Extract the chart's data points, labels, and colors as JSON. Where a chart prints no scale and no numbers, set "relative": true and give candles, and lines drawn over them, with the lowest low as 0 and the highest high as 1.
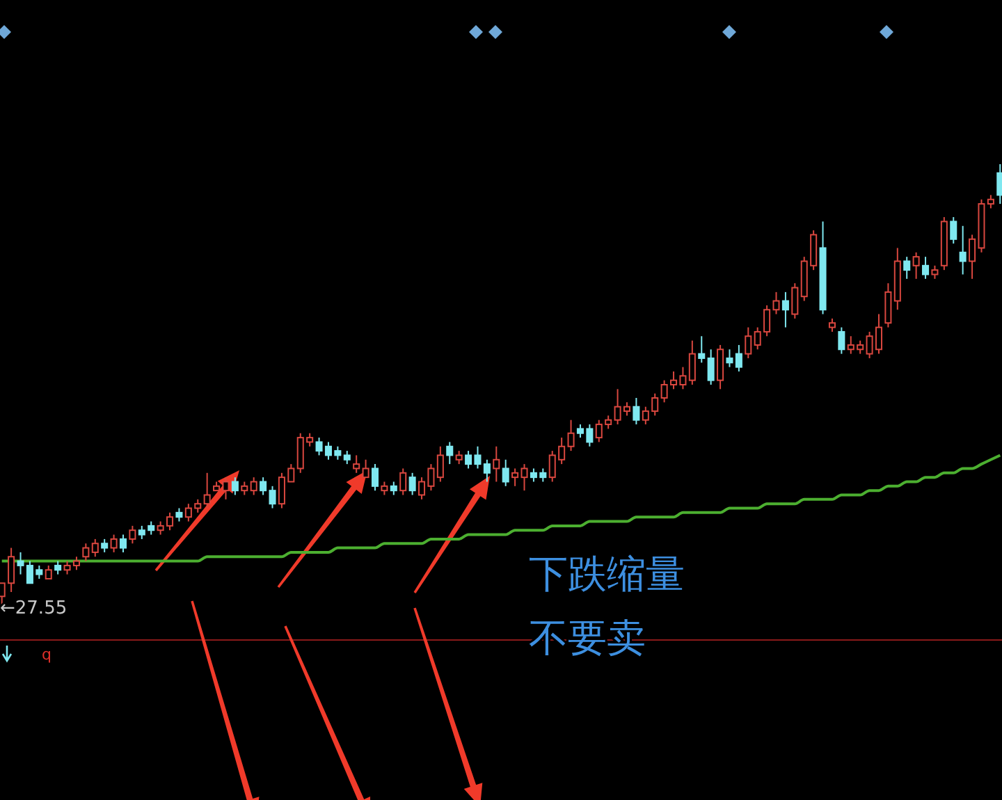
{
  "chart_data": {
    "type": "candlestick",
    "relative": true,
    "categories": [
      null,
      null,
      null,
      null,
      null,
      null,
      null,
      null,
      null,
      null,
      null,
      null,
      null,
      null,
      null,
      null,
      null,
      null,
      null,
      null,
      null,
      null,
      null,
      null,
      null,
      null,
      null,
      null,
      null,
      null,
      null,
      null,
      null,
      null,
      null,
      null,
      null,
      null,
      null,
      null,
      null,
      null,
      null,
      null,
      null,
      null,
      null,
      null,
      null,
      null,
      null,
      null,
      null,
      null,
      null,
      null,
      null,
      null,
      null,
      null,
      null,
      null,
      null,
      null,
      null,
      null,
      null,
      null,
      null,
      null,
      null,
      null,
      null,
      null,
      null,
      null,
      null,
      null,
      null,
      null,
      null,
      null,
      null,
      null,
      null,
      null,
      null,
      null,
      null,
      null,
      null,
      null,
      null,
      null,
      null,
      null,
      null,
      null,
      null,
      null,
      null,
      null,
      null,
      null,
      null,
      null,
      null,
      null
    ],
    "ohlc": [
      [
        0.02,
        0.05,
        0,
        0.05
      ],
      [
        0.05,
        0.13,
        0.03,
        0.11
      ],
      [
        0.1,
        0.12,
        0.07,
        0.09
      ],
      [
        0.09,
        0.1,
        0.05,
        0.05
      ],
      [
        0.08,
        0.09,
        0.06,
        0.07
      ],
      [
        0.06,
        0.09,
        0.06,
        0.08
      ],
      [
        0.09,
        0.1,
        0.07,
        0.08
      ],
      [
        0.08,
        0.1,
        0.07,
        0.09
      ],
      [
        0.09,
        0.11,
        0.08,
        0.1
      ],
      [
        0.11,
        0.14,
        0.1,
        0.13
      ],
      [
        0.12,
        0.15,
        0.11,
        0.14
      ],
      [
        0.14,
        0.15,
        0.12,
        0.13
      ],
      [
        0.13,
        0.16,
        0.12,
        0.15
      ],
      [
        0.15,
        0.16,
        0.12,
        0.13
      ],
      [
        0.15,
        0.18,
        0.14,
        0.17
      ],
      [
        0.17,
        0.18,
        0.15,
        0.16
      ],
      [
        0.18,
        0.19,
        0.16,
        0.17
      ],
      [
        0.17,
        0.19,
        0.16,
        0.18
      ],
      [
        0.18,
        0.21,
        0.17,
        0.2
      ],
      [
        0.21,
        0.22,
        0.19,
        0.2
      ],
      [
        0.2,
        0.23,
        0.19,
        0.22
      ],
      [
        0.22,
        0.24,
        0.21,
        0.23
      ],
      [
        0.23,
        0.3,
        0.22,
        0.25
      ],
      [
        0.26,
        0.28,
        0.26,
        0.27
      ],
      [
        0.26,
        0.29,
        0.24,
        0.28
      ],
      [
        0.28,
        0.29,
        0.25,
        0.26
      ],
      [
        0.26,
        0.28,
        0.25,
        0.27
      ],
      [
        0.26,
        0.29,
        0.25,
        0.28
      ],
      [
        0.28,
        0.29,
        0.25,
        0.26
      ],
      [
        0.26,
        0.27,
        0.22,
        0.23
      ],
      [
        0.23,
        0.3,
        0.22,
        0.29
      ],
      [
        0.28,
        0.32,
        0.28,
        0.31
      ],
      [
        0.31,
        0.39,
        0.3,
        0.38
      ],
      [
        0.37,
        0.39,
        0.36,
        0.38
      ],
      [
        0.37,
        0.38,
        0.34,
        0.35
      ],
      [
        0.36,
        0.37,
        0.33,
        0.34
      ],
      [
        0.35,
        0.36,
        0.33,
        0.34
      ],
      [
        0.34,
        0.35,
        0.32,
        0.33
      ],
      [
        0.31,
        0.34,
        0.3,
        0.32
      ],
      [
        0.29,
        0.33,
        0.29,
        0.31
      ],
      [
        0.31,
        0.32,
        0.26,
        0.27
      ],
      [
        0.26,
        0.28,
        0.25,
        0.27
      ],
      [
        0.27,
        0.28,
        0.25,
        0.26
      ],
      [
        0.26,
        0.31,
        0.25,
        0.3
      ],
      [
        0.29,
        0.3,
        0.25,
        0.26
      ],
      [
        0.25,
        0.29,
        0.24,
        0.28
      ],
      [
        0.27,
        0.32,
        0.26,
        0.31
      ],
      [
        0.29,
        0.36,
        0.28,
        0.34
      ],
      [
        0.36,
        0.37,
        0.32,
        0.34
      ],
      [
        0.33,
        0.35,
        0.32,
        0.34
      ],
      [
        0.34,
        0.35,
        0.31,
        0.32
      ],
      [
        0.34,
        0.36,
        0.31,
        0.32
      ],
      [
        0.32,
        0.33,
        0.28,
        0.3
      ],
      [
        0.31,
        0.36,
        0.28,
        0.33
      ],
      [
        0.31,
        0.33,
        0.27,
        0.28
      ],
      [
        0.29,
        0.31,
        0.27,
        0.3
      ],
      [
        0.29,
        0.32,
        0.26,
        0.31
      ],
      [
        0.3,
        0.31,
        0.28,
        0.29
      ],
      [
        0.3,
        0.31,
        0.28,
        0.29
      ],
      [
        0.29,
        0.35,
        0.28,
        0.34
      ],
      [
        0.33,
        0.38,
        0.32,
        0.36
      ],
      [
        0.36,
        0.42,
        0.35,
        0.39
      ],
      [
        0.4,
        0.41,
        0.38,
        0.39
      ],
      [
        0.4,
        0.41,
        0.36,
        0.37
      ],
      [
        0.38,
        0.42,
        0.37,
        0.41
      ],
      [
        0.41,
        0.43,
        0.4,
        0.42
      ],
      [
        0.42,
        0.49,
        0.41,
        0.45
      ],
      [
        0.44,
        0.46,
        0.43,
        0.45
      ],
      [
        0.45,
        0.47,
        0.41,
        0.42
      ],
      [
        0.42,
        0.45,
        0.41,
        0.44
      ],
      [
        0.44,
        0.48,
        0.43,
        0.47
      ],
      [
        0.47,
        0.51,
        0.46,
        0.5
      ],
      [
        0.5,
        0.53,
        0.49,
        0.51
      ],
      [
        0.5,
        0.54,
        0.49,
        0.52
      ],
      [
        0.51,
        0.6,
        0.5,
        0.57
      ],
      [
        0.57,
        0.61,
        0.55,
        0.56
      ],
      [
        0.56,
        0.58,
        0.5,
        0.51
      ],
      [
        0.51,
        0.59,
        0.49,
        0.58
      ],
      [
        0.56,
        0.58,
        0.54,
        0.55
      ],
      [
        0.57,
        0.59,
        0.53,
        0.54
      ],
      [
        0.57,
        0.63,
        0.56,
        0.61
      ],
      [
        0.59,
        0.63,
        0.58,
        0.62
      ],
      [
        0.62,
        0.68,
        0.61,
        0.67
      ],
      [
        0.67,
        0.71,
        0.66,
        0.69
      ],
      [
        0.69,
        0.71,
        0.63,
        0.67
      ],
      [
        0.66,
        0.73,
        0.65,
        0.72
      ],
      [
        0.7,
        0.79,
        0.69,
        0.78
      ],
      [
        0.77,
        0.85,
        0.76,
        0.84
      ],
      [
        0.81,
        0.87,
        0.66,
        0.67
      ],
      [
        0.63,
        0.65,
        0.62,
        0.64
      ],
      [
        0.62,
        0.63,
        0.57,
        0.58
      ],
      [
        0.58,
        0.61,
        0.57,
        0.59
      ],
      [
        0.58,
        0.6,
        0.57,
        0.59
      ],
      [
        0.57,
        0.62,
        0.56,
        0.61
      ],
      [
        0.58,
        0.66,
        0.57,
        0.63
      ],
      [
        0.64,
        0.73,
        0.63,
        0.71
      ],
      [
        0.69,
        0.81,
        0.67,
        0.78
      ],
      [
        0.78,
        0.79,
        0.74,
        0.76
      ],
      [
        0.77,
        0.8,
        0.74,
        0.79
      ],
      [
        0.77,
        0.79,
        0.74,
        0.75
      ],
      [
        0.75,
        0.77,
        0.74,
        0.76
      ],
      [
        0.77,
        0.88,
        0.76,
        0.87
      ],
      [
        0.87,
        0.88,
        0.82,
        0.83
      ],
      [
        0.8,
        0.86,
        0.75,
        0.78
      ],
      [
        0.78,
        0.84,
        0.74,
        0.83
      ],
      [
        0.81,
        0.92,
        0.8,
        0.91
      ],
      [
        0.91,
        0.93,
        0.9,
        0.92
      ],
      [
        0.98,
        1,
        0.91,
        0.93
      ]
    ],
    "series": [
      {
        "type": "line",
        "color": "#4caf30",
        "values": [
          0.1,
          0.1,
          0.1,
          0.1,
          0.1,
          0.1,
          0.1,
          0.1,
          0.1,
          0.1,
          0.1,
          0.1,
          0.1,
          0.1,
          0.1,
          0.1,
          0.1,
          0.1,
          0.1,
          0.1,
          0.1,
          0.1,
          0.11,
          0.11,
          0.11,
          0.11,
          0.11,
          0.11,
          0.11,
          0.11,
          0.11,
          0.12,
          0.12,
          0.12,
          0.12,
          0.12,
          0.13,
          0.13,
          0.13,
          0.13,
          0.13,
          0.14,
          0.14,
          0.14,
          0.14,
          0.14,
          0.15,
          0.15,
          0.15,
          0.15,
          0.16,
          0.16,
          0.16,
          0.16,
          0.16,
          0.17,
          0.17,
          0.17,
          0.17,
          0.18,
          0.18,
          0.18,
          0.18,
          0.19,
          0.19,
          0.19,
          0.19,
          0.19,
          0.2,
          0.2,
          0.2,
          0.2,
          0.2,
          0.21,
          0.21,
          0.21,
          0.21,
          0.21,
          0.22,
          0.22,
          0.22,
          0.22,
          0.23,
          0.23,
          0.23,
          0.23,
          0.24,
          0.24,
          0.24,
          0.24,
          0.25,
          0.25,
          0.25,
          0.26,
          0.26,
          0.27,
          0.27,
          0.28,
          0.28,
          0.29,
          0.29,
          0.3,
          0.3,
          0.31,
          0.31,
          0.32,
          0.33,
          0.34
        ]
      }
    ],
    "annotations": [
      "下跌缩量",
      "不要卖",
      "←27.55",
      "q"
    ]
  }
}
